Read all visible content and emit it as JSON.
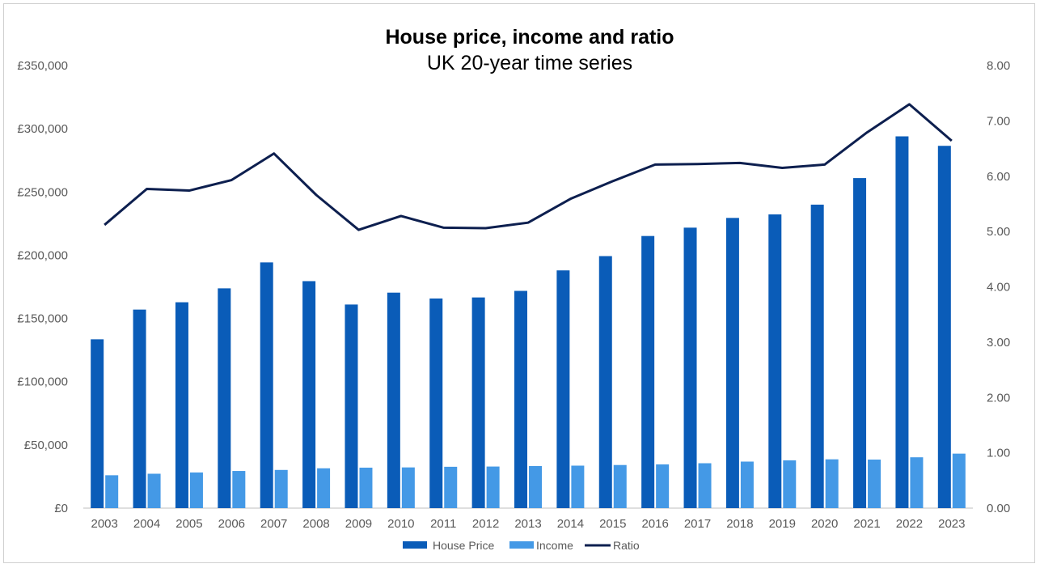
{
  "chart_data": {
    "type": "bar",
    "title": "House price, income and ratio",
    "subtitle": "UK 20-year time series",
    "categories": [
      "2003",
      "2004",
      "2005",
      "2006",
      "2007",
      "2008",
      "2009",
      "2010",
      "2011",
      "2012",
      "2013",
      "2014",
      "2015",
      "2016",
      "2017",
      "2018",
      "2019",
      "2020",
      "2021",
      "2022",
      "2023"
    ],
    "series": [
      {
        "name": "House Price",
        "type": "bar",
        "axis": "left",
        "color": "#0a5cb8",
        "values": [
          133500,
          157000,
          162800,
          173800,
          194300,
          179500,
          161000,
          170400,
          165800,
          166600,
          171800,
          188000,
          199300,
          215200,
          221800,
          229500,
          232300,
          240000,
          261000,
          294000,
          286500
        ]
      },
      {
        "name": "Income",
        "type": "bar",
        "axis": "left",
        "color": "#4499e6",
        "values": [
          26000,
          27200,
          28200,
          29400,
          30200,
          31500,
          32000,
          32200,
          32700,
          32900,
          33300,
          33600,
          34100,
          34600,
          35500,
          36800,
          37800,
          38600,
          38400,
          40200,
          43100
        ]
      },
      {
        "name": "Ratio",
        "type": "line",
        "axis": "right",
        "color": "#0d1f4f",
        "values": [
          5.12,
          5.77,
          5.74,
          5.93,
          6.41,
          5.66,
          5.03,
          5.28,
          5.07,
          5.06,
          5.16,
          5.59,
          5.91,
          6.21,
          6.22,
          6.24,
          6.15,
          6.21,
          6.79,
          7.3,
          6.64
        ]
      }
    ],
    "y_left": {
      "min": 0,
      "max": 350000,
      "ticks": [
        "£0",
        "£50,000",
        "£100,000",
        "£150,000",
        "£200,000",
        "£250,000",
        "£300,000",
        "£350,000"
      ]
    },
    "y_right": {
      "min": 0,
      "max": 8,
      "ticks": [
        "0.00",
        "1.00",
        "2.00",
        "3.00",
        "4.00",
        "5.00",
        "6.00",
        "7.00",
        "8.00"
      ]
    },
    "grid": false,
    "legend": "bottom"
  }
}
